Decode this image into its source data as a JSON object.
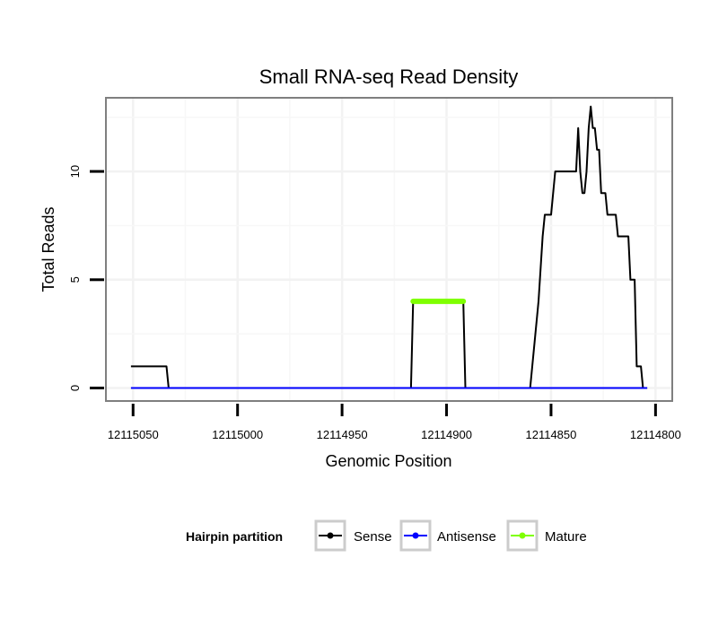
{
  "chart_data": {
    "type": "line",
    "title": "Small RNA-seq Read Density",
    "xlabel": "Genomic Position",
    "ylabel": "Total Reads",
    "x_reversed": true,
    "xlim": [
      12115063,
      12114792
    ],
    "ylim": [
      -0.6,
      13.4
    ],
    "x_ticks": [
      12115050,
      12115000,
      12114950,
      12114900,
      12114850,
      12114800
    ],
    "x_tick_labels": [
      "12115050",
      "12115000",
      "12114950",
      "12114900",
      "12114850",
      "12114800"
    ],
    "y_ticks": [
      0,
      5,
      10
    ],
    "y_tick_labels": [
      "0",
      "5",
      "10"
    ],
    "grid": true,
    "legend": {
      "title": "Hairpin partition",
      "position": "bottom",
      "entries": [
        "Sense",
        "Antisense",
        "Mature"
      ]
    },
    "series": [
      {
        "name": "Sense",
        "color": "#000000",
        "x": [
          12115051,
          12115034,
          12115033,
          12114917,
          12114916,
          12114892,
          12114891,
          12114860,
          12114856,
          12114854,
          12114853,
          12114850,
          12114848,
          12114846,
          12114842,
          12114838,
          12114837,
          12114836,
          12114835,
          12114834,
          12114833,
          12114832,
          12114831,
          12114830,
          12114829,
          12114828,
          12114827,
          12114826,
          12114825,
          12114824,
          12114823,
          12114822,
          12114821,
          12114819,
          12114818,
          12114816,
          12114815,
          12114813,
          12114812,
          12114810,
          12114809,
          12114808,
          12114807,
          12114806,
          12114805,
          12114804
        ],
        "y": [
          1,
          1,
          0,
          0,
          4,
          4,
          0,
          0,
          4,
          7,
          8,
          8,
          10,
          10,
          10,
          10,
          12,
          10,
          9,
          9,
          10,
          12,
          13,
          12,
          12,
          11,
          11,
          9,
          9,
          9,
          8,
          8,
          8,
          8,
          7,
          7,
          7,
          7,
          5,
          5,
          1,
          1,
          1,
          0,
          0,
          0
        ]
      },
      {
        "name": "Antisense",
        "color": "#0000ff",
        "x": [
          12115051,
          12114804
        ],
        "y": [
          0,
          0
        ]
      },
      {
        "name": "Mature",
        "color": "#7fff00",
        "x": [
          12114916,
          12114892
        ],
        "y": [
          4,
          4
        ]
      }
    ]
  }
}
